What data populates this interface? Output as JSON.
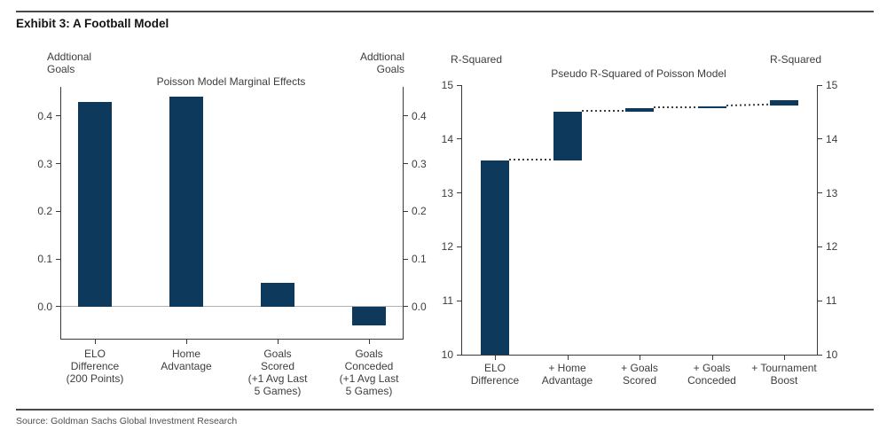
{
  "page": {
    "heading": "Exhibit 3: A Football Model",
    "source_note": "Source: Goldman Sachs Global Investment Research"
  },
  "colors": {
    "bar": "#0d395c",
    "axis": "#3a3a3a",
    "zero_line": "#b3b3b3",
    "connector_dots": "#3f3f3f"
  },
  "chart_data": [
    {
      "type": "bar",
      "title": "Poisson Model Marginal Effects",
      "axis_label_left": "Addtional\nGoals",
      "axis_label_right": "Addtional\nGoals",
      "categories": [
        "ELO\nDifference\n(200 Points)",
        "Home\nAdvantage",
        "Goals\nScored\n(+1 Avg Last\n5 Games)",
        "Goals\nConceded\n(+1 Avg Last\n5 Games)"
      ],
      "values": [
        0.43,
        0.44,
        0.05,
        -0.04
      ],
      "ylim": [
        -0.067,
        0.461
      ],
      "yticks": [
        0,
        0.1,
        0.2,
        0.3,
        0.4
      ],
      "ytick_labels": [
        "0.0",
        "0.1",
        "0.2",
        "0.3",
        "0.4"
      ],
      "zero_line": true,
      "grid": false,
      "ticks_both_sides": true,
      "bar_color": "#0d395c"
    },
    {
      "type": "bar",
      "subtype": "waterfall",
      "title": "Pseudo R-Squared of Poisson Model",
      "axis_label_left": "R-Squared",
      "axis_label_right": "R-Squared",
      "categories": [
        "ELO\nDifference",
        "+ Home\nAdvantage",
        "+ Goals\nScored",
        "+ Goals\nConceded",
        "+ Tournament\nBoost"
      ],
      "segments": [
        [
          10,
          13.6
        ],
        [
          13.6,
          14.5
        ],
        [
          14.5,
          14.58
        ],
        [
          14.58,
          14.6
        ],
        [
          14.62,
          14.72
        ]
      ],
      "cumulative_values": [
        13.6,
        14.5,
        14.58,
        14.6,
        14.72
      ],
      "ylim": [
        10,
        15
      ],
      "yticks": [
        10,
        11,
        12,
        13,
        14,
        15
      ],
      "ytick_labels": [
        "10",
        "11",
        "12",
        "13",
        "14",
        "15"
      ],
      "connector": "dotted",
      "zero_line": false,
      "grid": false,
      "ticks_both_sides": true,
      "bar_color": "#0d395c"
    }
  ]
}
